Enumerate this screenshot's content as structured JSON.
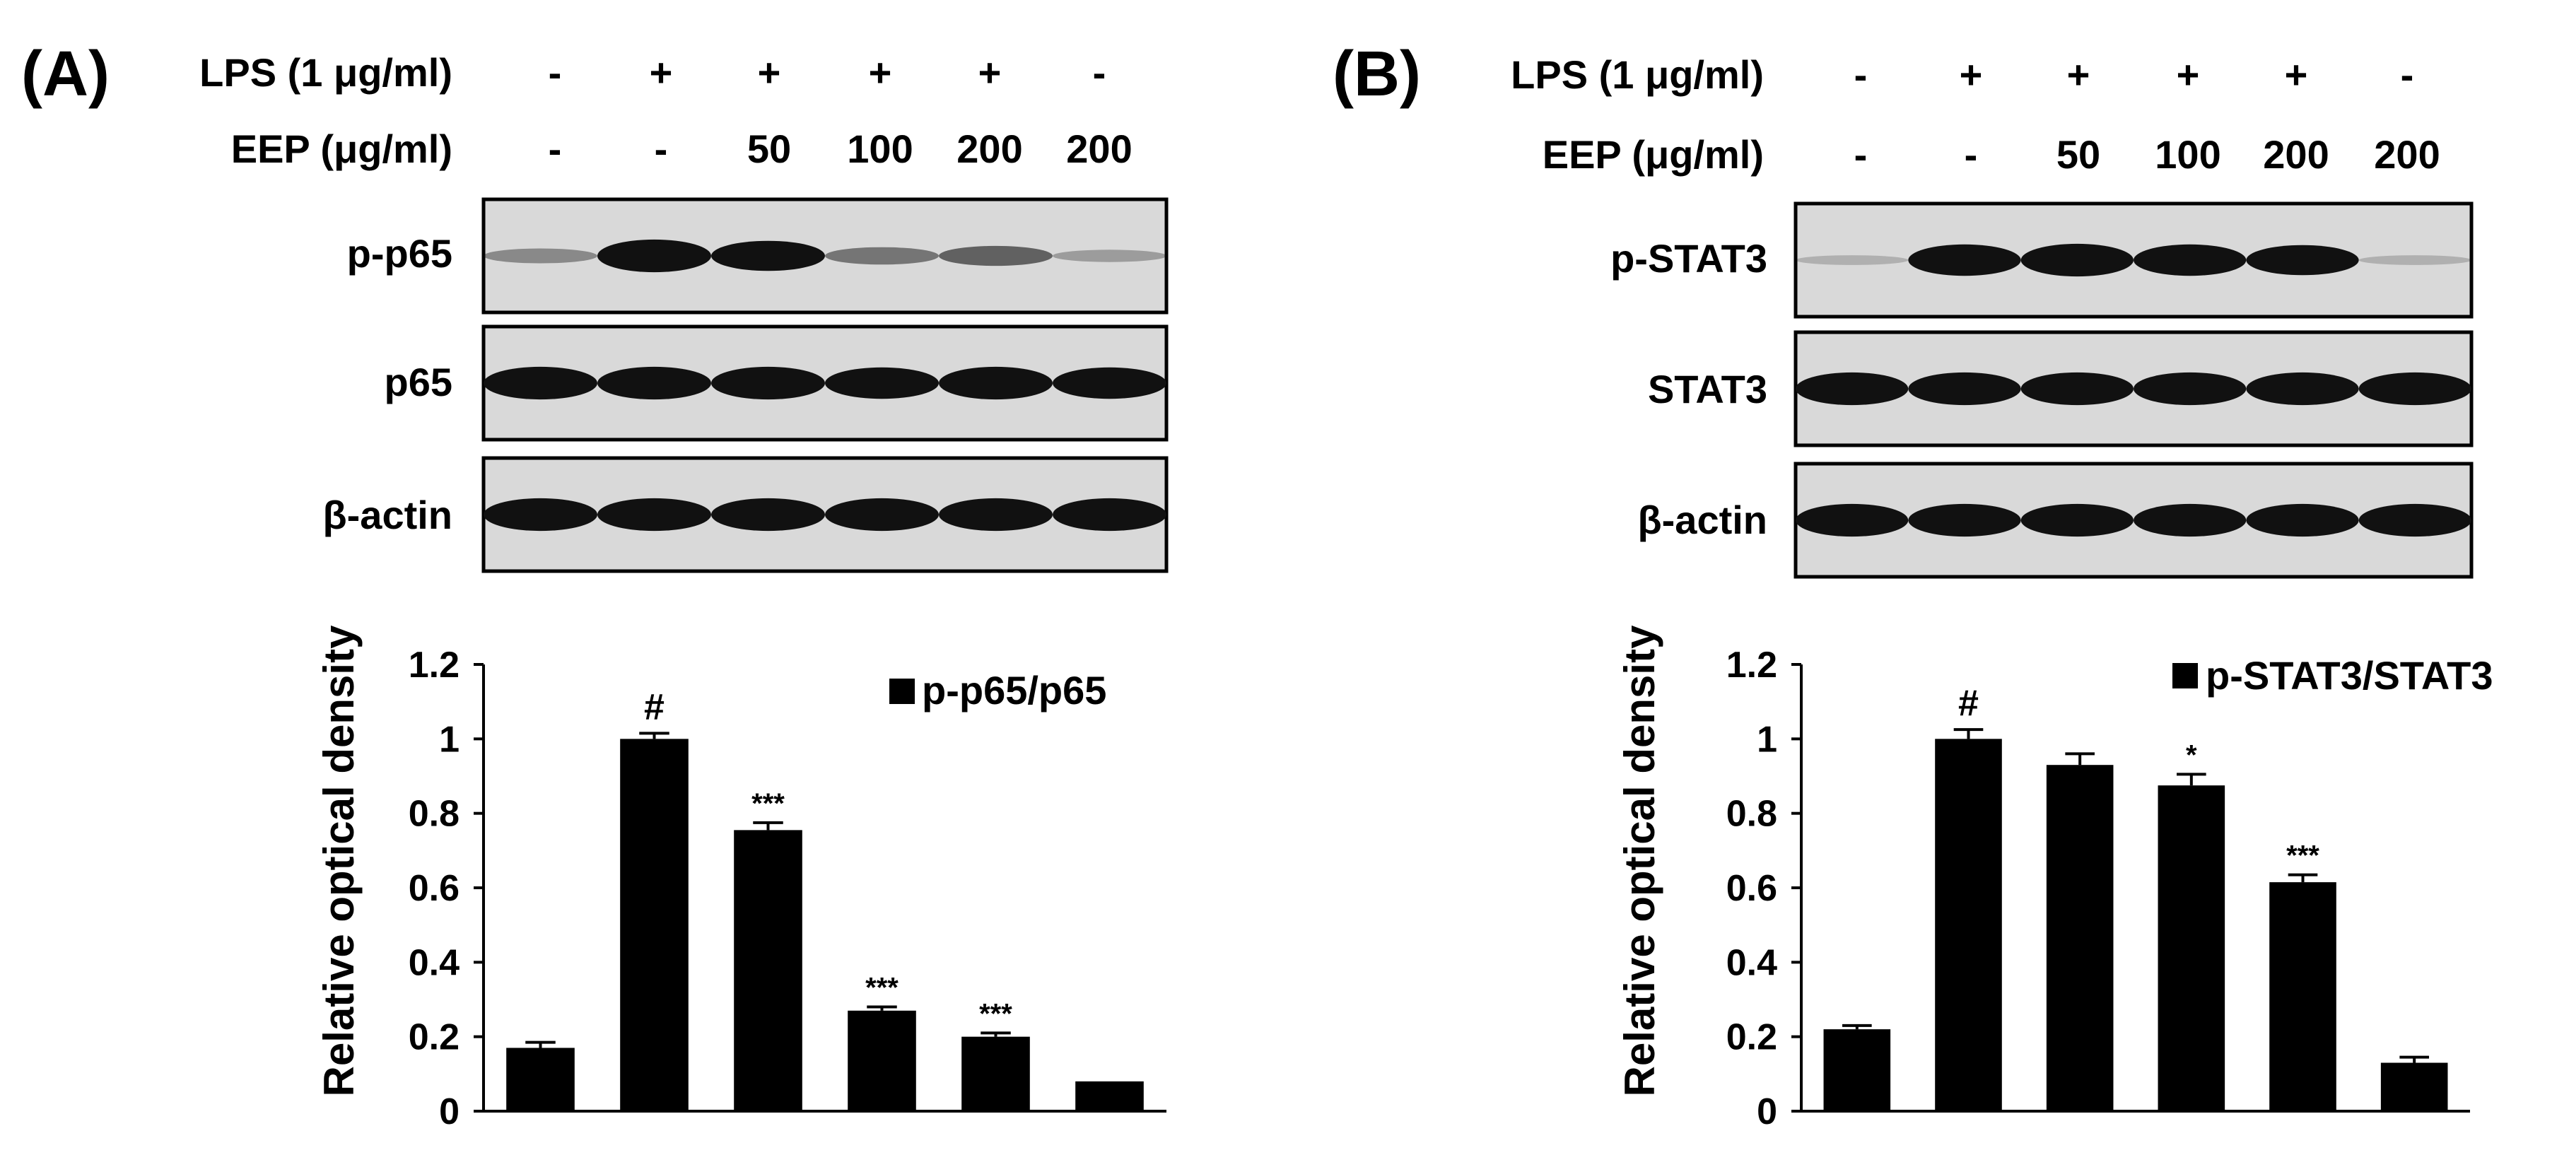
{
  "panels": [
    {
      "label": "(A)",
      "treatments": {
        "lps_label": "LPS (1 μg/ml)",
        "lps": [
          "-",
          "+",
          "+",
          "+",
          "+",
          "-"
        ],
        "eep_label": "EEP (μg/ml)",
        "eep": [
          "-",
          "-",
          "50",
          "100",
          "200",
          "200"
        ]
      },
      "blots": [
        {
          "label": "p-p65",
          "intensity": [
            0.25,
            0.95,
            0.85,
            0.35,
            0.45,
            0.15
          ]
        },
        {
          "label": "p65",
          "intensity": [
            0.95,
            0.95,
            0.95,
            0.9,
            0.95,
            0.9
          ]
        },
        {
          "label": "β-actin",
          "intensity": [
            0.95,
            0.95,
            0.95,
            0.95,
            0.95,
            0.95
          ]
        }
      ],
      "chart_data": {
        "type": "bar",
        "ylabel": "Relative optical density",
        "ylim": [
          0,
          1.2
        ],
        "yticks": [
          "0",
          "0.2",
          "0.4",
          "0.6",
          "0.8",
          "1",
          "1.2"
        ],
        "legend_position": "top-right",
        "series": [
          {
            "name": "p-p65/p65",
            "values": [
              0.17,
              1.0,
              0.755,
              0.27,
              0.2,
              0.08
            ],
            "errors": [
              0.015,
              0.015,
              0.02,
              0.01,
              0.01,
              0.0
            ],
            "significance": [
              "",
              "#",
              "***",
              "***",
              "***",
              ""
            ]
          }
        ]
      }
    },
    {
      "label": "(B)",
      "treatments": {
        "lps_label": "LPS (1 μg/ml)",
        "lps": [
          "-",
          "+",
          "+",
          "+",
          "+",
          "-"
        ],
        "eep_label": "EEP (μg/ml)",
        "eep": [
          "-",
          "-",
          "50",
          "100",
          "200",
          "200"
        ]
      },
      "blots": [
        {
          "label": "p-STAT3",
          "intensity": [
            0.05,
            0.9,
            0.95,
            0.9,
            0.85,
            0.05
          ]
        },
        {
          "label": "STAT3",
          "intensity": [
            0.95,
            0.95,
            0.95,
            0.95,
            0.95,
            0.95
          ]
        },
        {
          "label": "β-actin",
          "intensity": [
            0.95,
            0.95,
            0.95,
            0.95,
            0.95,
            0.95
          ]
        }
      ],
      "chart_data": {
        "type": "bar",
        "ylabel": "Relative optical density",
        "ylim": [
          0,
          1.2
        ],
        "yticks": [
          "0",
          "0.2",
          "0.4",
          "0.6",
          "0.8",
          "1",
          "1.2"
        ],
        "legend_position": "top-right",
        "series": [
          {
            "name": "p-STAT3/STAT3",
            "values": [
              0.22,
              1.0,
              0.93,
              0.875,
              0.615,
              0.13
            ],
            "errors": [
              0.01,
              0.025,
              0.03,
              0.03,
              0.02,
              0.015
            ],
            "significance": [
              "",
              "#",
              "",
              "*",
              "***",
              ""
            ]
          }
        ]
      }
    }
  ],
  "colors": {
    "bar": "#000000",
    "band": "#111111",
    "blot_bg": "#d9d9d9",
    "axis": "#000000"
  }
}
